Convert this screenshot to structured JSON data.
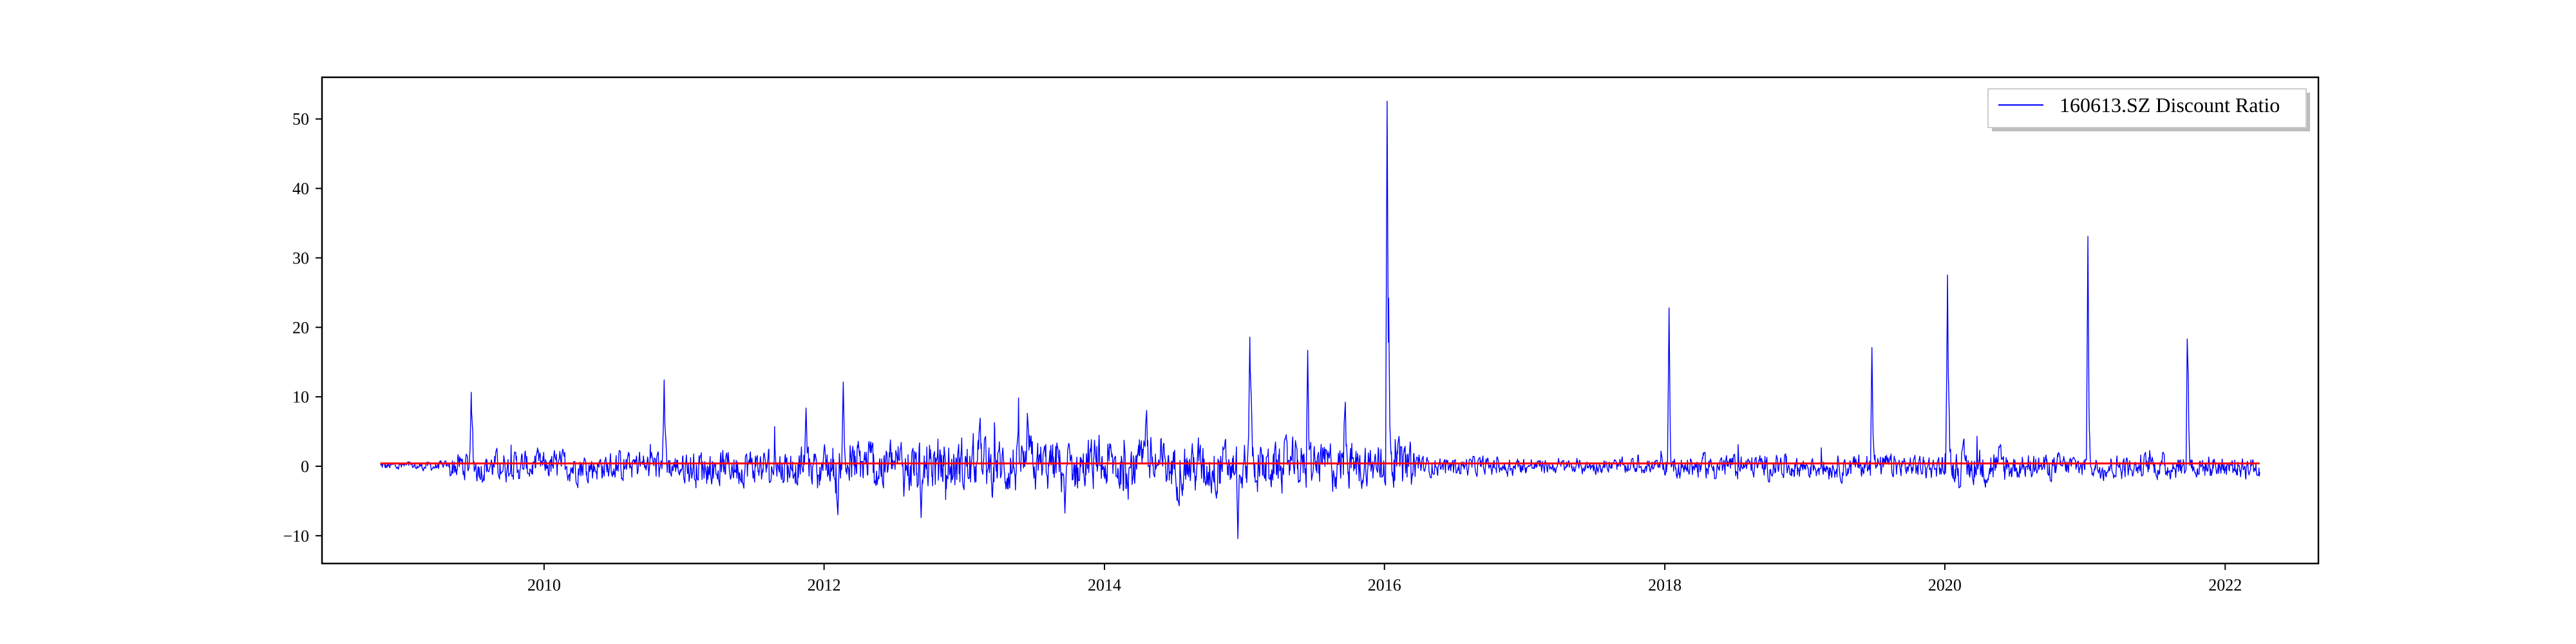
{
  "chart_data": {
    "type": "line",
    "title": "",
    "xlabel": "",
    "ylabel": "",
    "xlim": [
      "2008-06-01",
      "2022-09-01"
    ],
    "ylim": [
      -14,
      56
    ],
    "x_ticks": [
      "2010",
      "2012",
      "2014",
      "2016",
      "2018",
      "2020",
      "2022"
    ],
    "y_ticks": [
      -10,
      0,
      10,
      20,
      30,
      40,
      50
    ],
    "grid": false,
    "legend": {
      "placement": "top-right",
      "entries": [
        "160613.SZ Discount Ratio"
      ]
    },
    "series": [
      {
        "name": "160613.SZ Discount Ratio",
        "color": "#0000ff",
        "x_start": "2008-10-31",
        "x_end": "2022-04-01",
        "baseline": 0,
        "approximate_peaks": [
          {
            "x": "2009-06-25",
            "y": 10.5
          },
          {
            "x": "2010-11-10",
            "y": 12.2
          },
          {
            "x": "2011-11-15",
            "y": 8.5
          },
          {
            "x": "2012-02-20",
            "y": 12.3
          },
          {
            "x": "2012-02-05",
            "y": -9.0
          },
          {
            "x": "2012-09-10",
            "y": -7.5
          },
          {
            "x": "2013-02-10",
            "y": 9.5
          },
          {
            "x": "2013-06-15",
            "y": 10.0
          },
          {
            "x": "2013-09-20",
            "y": -6.5
          },
          {
            "x": "2014-04-20",
            "y": 11.0
          },
          {
            "x": "2014-12-15",
            "y": -10.5
          },
          {
            "x": "2015-01-15",
            "y": 18.8
          },
          {
            "x": "2015-06-15",
            "y": 16.5
          },
          {
            "x": "2015-09-20",
            "y": 12.0
          },
          {
            "x": "2016-01-08",
            "y": 52.5
          },
          {
            "x": "2016-01-12",
            "y": 24.0
          },
          {
            "x": "2018-01-12",
            "y": 22.7
          },
          {
            "x": "2019-06-25",
            "y": 17.3
          },
          {
            "x": "2020-01-08",
            "y": 27.3
          },
          {
            "x": "2021-01-08",
            "y": 33.3
          },
          {
            "x": "2021-09-25",
            "y": 24.3
          }
        ],
        "typical_range": [
          -3,
          3
        ]
      },
      {
        "name": "",
        "color": "#ff0000",
        "x_start": "2008-10-31",
        "x_end": "2022-04-01",
        "value": 0.4
      }
    ]
  }
}
